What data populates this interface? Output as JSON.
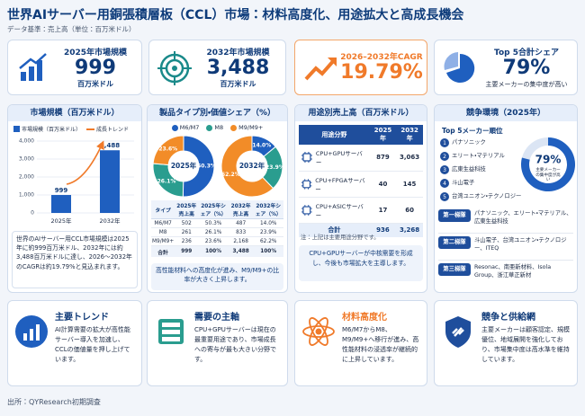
{
  "header": {
    "title": "世界AIサーバー用銅張積層板（CCL）市場：材料高度化、用途拡大と高成長機会",
    "subtitle": "データ基準：売上高（単位：百万米ドル）"
  },
  "kpis": [
    {
      "label": "2025年市場規模",
      "value": "999",
      "unit": "百万米ドル"
    },
    {
      "label": "2032年市場規模",
      "value": "3,488",
      "unit": "百万米ドル"
    },
    {
      "label": "2026–2032年CAGR",
      "value": "19.79%"
    },
    {
      "label": "Top 5合計シェア",
      "value": "79%",
      "note": "主要メーカーの集中度が高い"
    }
  ],
  "market_size": {
    "title": "市場規模（百万米ドル）",
    "chart_data": {
      "type": "bar",
      "categories": [
        "2025年",
        "2032年"
      ],
      "series": [
        {
          "name": "市場規模（百万米ドル）",
          "color": "#1f5fbf",
          "values": [
            999,
            3488
          ],
          "value_labels": [
            "999",
            "3,488"
          ]
        }
      ],
      "trend_name": "成長トレンド",
      "trend_color": "#f07a2a",
      "ylim": [
        0,
        4000
      ],
      "yticks": [
        0,
        {
          "value": 1000,
          "label": "1,000"
        },
        {
          "value": 2000,
          "label": "2,000"
        },
        {
          "value": 3000,
          "label": "3,000"
        },
        {
          "value": 4000,
          "label": "4,000"
        }
      ],
      "grid": true
    },
    "summary": "世界のAIサーバー用CCL市場規模は2025年に約999百万米ドル、2032年には約3,488百万米ドルに達し、2026～2032年のCAGRは約19.79%と見込まれます。"
  },
  "product_share": {
    "title": "製品タイプ別・価値シェア（%）",
    "legend": [
      {
        "name": "M6/M7",
        "color": "#1f5fbf"
      },
      {
        "name": "M8",
        "color": "#2a9d8f"
      },
      {
        "name": "M9/M9+",
        "color": "#f28c28"
      }
    ],
    "charts": [
      {
        "type": "pie",
        "center_label": "2025年",
        "values": [
          50.3,
          26.1,
          23.6
        ],
        "value_labels": [
          "50.3%",
          "26.1%",
          "23.6%"
        ]
      },
      {
        "type": "pie",
        "center_label": "2032年",
        "values": [
          14.0,
          23.9,
          62.2
        ],
        "value_labels": [
          "14.0%",
          "23.9%",
          "62.2%"
        ]
      }
    ],
    "table": {
      "header": [
        "タイプ",
        "2025年売上高",
        "2025年シェア（%）",
        "2032年売上高",
        "2032年シェア（%）"
      ],
      "rows": [
        [
          "M6/M7",
          "502",
          "50.3%",
          "487",
          "14.0%"
        ],
        [
          "M8",
          "261",
          "26.1%",
          "833",
          "23.9%"
        ],
        [
          "M9/M9+",
          "236",
          "23.6%",
          "2,168",
          "62.2%"
        ]
      ],
      "total": [
        "合計",
        "999",
        "100%",
        "3,488",
        "100%"
      ]
    },
    "note": "高性能材料への高度化が進み、M9/M9+の比率が大きく上昇します。"
  },
  "application": {
    "title": "用途別売上高（百万米ドル）",
    "table": {
      "header": [
        "用途分野",
        "2025年",
        "2032年"
      ],
      "rows": [
        [
          "CPU+GPUサーバー",
          "879",
          "3,063"
        ],
        [
          "CPU+FPGAサーバー",
          "40",
          "145"
        ],
        [
          "CPU+ASICサーバー",
          "17",
          "60"
        ]
      ],
      "total": [
        "合計",
        "936",
        "3,268"
      ]
    },
    "footnote": "注：上記は主要用途分野です。",
    "note": "CPU+GPUサーバーが中核需要を形成し、今後も市場拡大を主導します。"
  },
  "competition": {
    "title": "競争環境（2025年）",
    "subtitle": "Top 5メーカー順位",
    "ranking": [
      {
        "rank": "1",
        "name": "パナソニック"
      },
      {
        "rank": "2",
        "name": "エリート・マテリアル"
      },
      {
        "rank": "3",
        "name": "広東生益科技"
      },
      {
        "rank": "4",
        "name": "斗山電子"
      },
      {
        "rank": "5",
        "name": "台湾ユニオン・テクノロジー"
      }
    ],
    "share": {
      "type": "pie",
      "values": [
        79
      ],
      "value_labels": [
        "79%"
      ],
      "color": "#1f5fbf",
      "caption": "主要メーカーの集中度が高い"
    },
    "tiers": [
      {
        "label": "第一梯隊",
        "members": "パナソニック、エリート・マテリアル、広東生益科技"
      },
      {
        "label": "第二梯隊",
        "members": "斗山電子、台湾ユニオン・テクノロジー、ITEQ"
      },
      {
        "label": "第三梯隊",
        "members": "Resonac、南亜新材料、Isola Group、浙江華正新材"
      }
    ]
  },
  "insights": [
    {
      "title": "主要トレンド",
      "text": "AI計算需要の拡大が高性能サーバー導入を加速し、CCLの価値量を押し上げています。"
    },
    {
      "title": "需要の主軸",
      "text": "CPU+GPUサーバーは現在の最重要用途であり、市場成長への寄与が最も大きい分野です。"
    },
    {
      "title": "材料高度化",
      "text": "M6/M7からM8、M9/M9+へ移行が進み、高性能材料の浸透率が継続的に上昇しています。"
    },
    {
      "title": "競争と供給網",
      "text": "主要メーカーは顧客認定、規模優位、地域展開を強化しており、市場集中度は高水準を維持しています。"
    }
  ],
  "footer": {
    "source": "出所：QYResearch初期調査"
  }
}
